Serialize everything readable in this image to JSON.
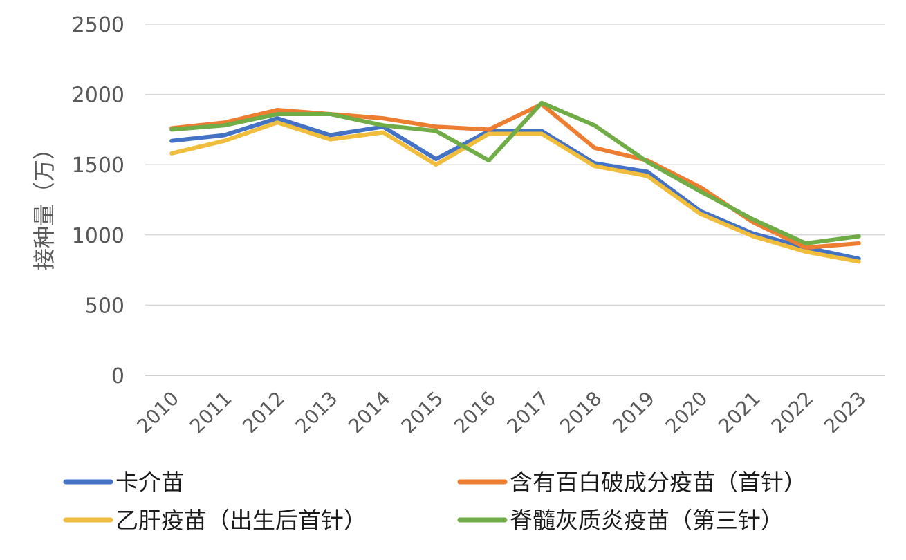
{
  "chart_data": {
    "type": "line",
    "title": "",
    "xlabel": "",
    "ylabel": "接种量（万）",
    "ylim": [
      0,
      2500
    ],
    "yticks": [
      0,
      500,
      1000,
      1500,
      2000,
      2500
    ],
    "grid": true,
    "legend_position": "bottom",
    "categories": [
      "2010",
      "2011",
      "2012",
      "2013",
      "2014",
      "2015",
      "2016",
      "2017",
      "2018",
      "2019",
      "2020",
      "2021",
      "2022",
      "2023"
    ],
    "series": [
      {
        "name": "卡介苗",
        "color": "#4472C4",
        "values": [
          1670,
          1710,
          1830,
          1710,
          1770,
          1540,
          1740,
          1740,
          1510,
          1450,
          1170,
          1010,
          910,
          830
        ]
      },
      {
        "name": "含有百白破成分疫苗（首针）",
        "color": "#ED7D31",
        "values": [
          1760,
          1800,
          1890,
          1860,
          1830,
          1770,
          1750,
          1930,
          1620,
          1530,
          1340,
          1090,
          910,
          940
        ]
      },
      {
        "name": "乙肝疫苗（出生后首针）",
        "color": "#F0BE3C",
        "values": [
          1580,
          1670,
          1800,
          1680,
          1730,
          1500,
          1720,
          1720,
          1490,
          1420,
          1150,
          990,
          880,
          810
        ]
      },
      {
        "name": "脊髓灰质炎疫苗（第三针）",
        "color": "#70AD47",
        "values": [
          1750,
          1780,
          1860,
          1860,
          1780,
          1740,
          1530,
          1940,
          1780,
          1520,
          1310,
          1110,
          940,
          990
        ]
      }
    ]
  }
}
